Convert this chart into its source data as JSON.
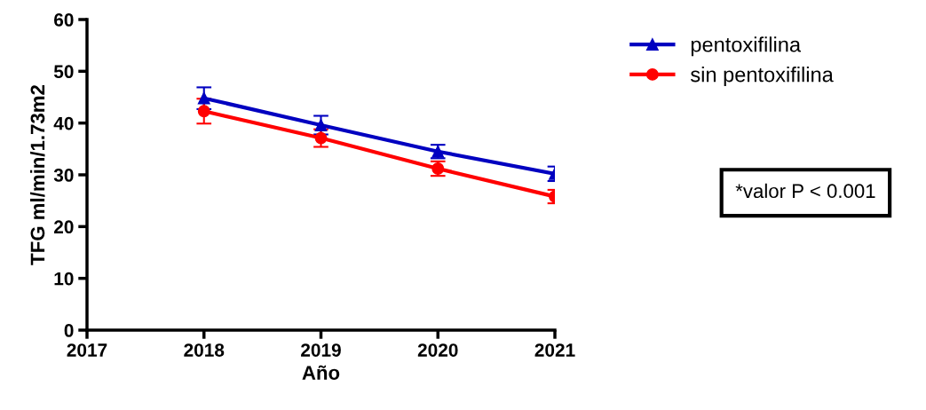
{
  "chart_data": {
    "type": "line",
    "xlabel": "Año",
    "ylabel": "TFG ml/min/1.73m2",
    "x": [
      2018,
      2019,
      2020,
      2021
    ],
    "series": [
      {
        "name": "pentoxifilina",
        "color": "#0000c0",
        "marker": "triangle",
        "values": [
          44.8,
          39.6,
          34.5,
          30.2
        ],
        "errors": [
          2.1,
          1.8,
          1.3,
          1.4
        ]
      },
      {
        "name": "sin pentoxifilina",
        "color": "#ff0000",
        "marker": "circle",
        "values": [
          42.3,
          37.1,
          31.2,
          25.8
        ],
        "errors": [
          2.4,
          1.7,
          1.4,
          1.3
        ]
      }
    ],
    "xlim": [
      2017,
      2021
    ],
    "xticks": [
      2017,
      2018,
      2019,
      2020,
      2021
    ],
    "ylim": [
      0,
      60
    ],
    "yticks": [
      0,
      10,
      20,
      30,
      40,
      50,
      60
    ],
    "grid": false,
    "legend": "top right",
    "line_style": "solid",
    "annotations": [
      "*valor P < 0.001"
    ]
  }
}
